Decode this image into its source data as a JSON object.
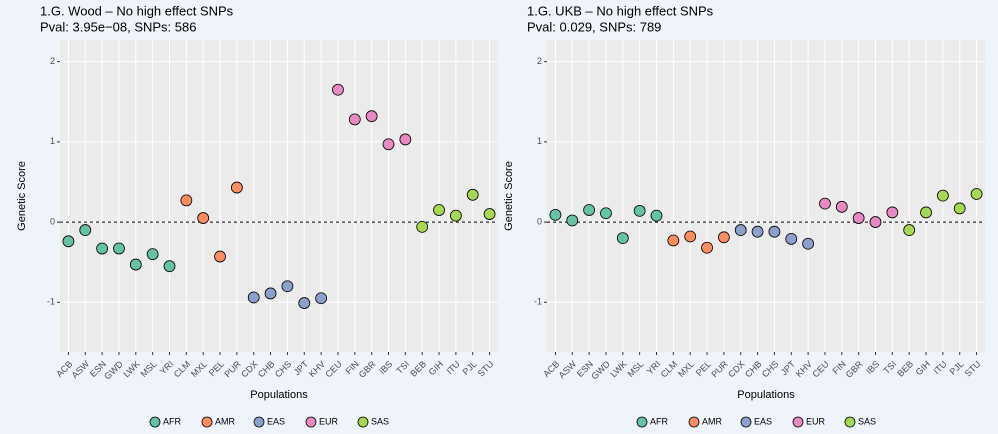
{
  "chart_data": [
    {
      "type": "scatter",
      "title": "1.G. Wood – No high effect SNPs",
      "subtitle": "Pval: 3.95e−08, SNPs: 586",
      "x_label": "Populations",
      "y_label": "Genetic Score",
      "categories": [
        "ACB",
        "ASW",
        "ESN",
        "GWD",
        "LWK",
        "MSL",
        "YRI",
        "CLM",
        "MXL",
        "PEL",
        "PUR",
        "CDX",
        "CHB",
        "CHS",
        "JPT",
        "KHV",
        "CEU",
        "FIN",
        "GBR",
        "IBS",
        "TSI",
        "BEB",
        "GIH",
        "ITU",
        "PJL",
        "STU"
      ],
      "series": [
        {
          "name": "AFR",
          "color": "#66c2a5",
          "values": [
            -0.24,
            -0.1,
            -0.33,
            -0.33,
            -0.53,
            -0.4,
            -0.55,
            null,
            null,
            null,
            null,
            null,
            null,
            null,
            null,
            null,
            null,
            null,
            null,
            null,
            null,
            null,
            null,
            null,
            null,
            null
          ]
        },
        {
          "name": "AMR",
          "color": "#fc8d62",
          "values": [
            null,
            null,
            null,
            null,
            null,
            null,
            null,
            0.27,
            0.05,
            -0.43,
            0.43,
            null,
            null,
            null,
            null,
            null,
            null,
            null,
            null,
            null,
            null,
            null,
            null,
            null,
            null,
            null
          ]
        },
        {
          "name": "EAS",
          "color": "#8da0cb",
          "values": [
            null,
            null,
            null,
            null,
            null,
            null,
            null,
            null,
            null,
            null,
            null,
            -0.94,
            -0.89,
            -0.8,
            -1.01,
            -0.95,
            null,
            null,
            null,
            null,
            null,
            null,
            null,
            null,
            null,
            null
          ]
        },
        {
          "name": "EUR",
          "color": "#e78ac3",
          "values": [
            null,
            null,
            null,
            null,
            null,
            null,
            null,
            null,
            null,
            null,
            null,
            null,
            null,
            null,
            null,
            null,
            1.65,
            1.28,
            1.32,
            0.97,
            1.03,
            null,
            null,
            null,
            null,
            null
          ]
        },
        {
          "name": "SAS",
          "color": "#a6d854",
          "values": [
            null,
            null,
            null,
            null,
            null,
            null,
            null,
            null,
            null,
            null,
            null,
            null,
            null,
            null,
            null,
            null,
            null,
            null,
            null,
            null,
            null,
            -0.06,
            0.15,
            0.08,
            0.34,
            0.1
          ]
        }
      ],
      "ylim": [
        -1.62,
        2.27
      ],
      "yticks": [
        -1,
        0,
        1,
        2
      ],
      "grid": true,
      "reference_line": 0,
      "legend": "bottom"
    },
    {
      "type": "scatter",
      "title": "1.G. UKB – No high effect SNPs",
      "subtitle": "Pval: 0.029, SNPs: 789",
      "x_label": "Populations",
      "y_label": "Genetic Score",
      "categories": [
        "ACB",
        "ASW",
        "ESN",
        "GWD",
        "LWK",
        "MSL",
        "YRI",
        "CLM",
        "MXL",
        "PEL",
        "PUR",
        "CDX",
        "CHB",
        "CHS",
        "JPT",
        "KHV",
        "CEU",
        "FIN",
        "GBR",
        "IBS",
        "TSI",
        "BEB",
        "GIH",
        "ITU",
        "PJL",
        "STU"
      ],
      "series": [
        {
          "name": "AFR",
          "color": "#66c2a5",
          "values": [
            0.09,
            0.02,
            0.15,
            0.11,
            -0.2,
            0.14,
            0.08,
            null,
            null,
            null,
            null,
            null,
            null,
            null,
            null,
            null,
            null,
            null,
            null,
            null,
            null,
            null,
            null,
            null,
            null,
            null
          ]
        },
        {
          "name": "AMR",
          "color": "#fc8d62",
          "values": [
            null,
            null,
            null,
            null,
            null,
            null,
            null,
            -0.23,
            -0.18,
            -0.32,
            -0.19,
            null,
            null,
            null,
            null,
            null,
            null,
            null,
            null,
            null,
            null,
            null,
            null,
            null,
            null,
            null
          ]
        },
        {
          "name": "EAS",
          "color": "#8da0cb",
          "values": [
            null,
            null,
            null,
            null,
            null,
            null,
            null,
            null,
            null,
            null,
            null,
            -0.1,
            -0.12,
            -0.12,
            -0.21,
            -0.27,
            null,
            null,
            null,
            null,
            null,
            null,
            null,
            null,
            null,
            null
          ]
        },
        {
          "name": "EUR",
          "color": "#e78ac3",
          "values": [
            null,
            null,
            null,
            null,
            null,
            null,
            null,
            null,
            null,
            null,
            null,
            null,
            null,
            null,
            null,
            null,
            0.23,
            0.19,
            0.05,
            0.0,
            0.12,
            null,
            null,
            null,
            null,
            null
          ]
        },
        {
          "name": "SAS",
          "color": "#a6d854",
          "values": [
            null,
            null,
            null,
            null,
            null,
            null,
            null,
            null,
            null,
            null,
            null,
            null,
            null,
            null,
            null,
            null,
            null,
            null,
            null,
            null,
            null,
            -0.1,
            0.12,
            0.33,
            0.17,
            0.35
          ]
        }
      ],
      "ylim": [
        -1.62,
        2.27
      ],
      "yticks": [
        -1,
        0,
        1,
        2
      ],
      "grid": true,
      "reference_line": 0,
      "legend": "bottom"
    }
  ]
}
